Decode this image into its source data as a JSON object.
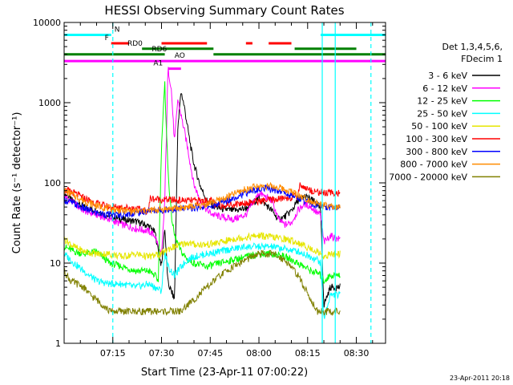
{
  "chart_data": {
    "type": "line",
    "title": "HESSI Observing Summary Count Rates",
    "xlabel": "Start Time (23-Apr-11 07:00:22)",
    "ylabel": "Count Rate (s⁻¹ detector⁻¹)",
    "y_scale": "log",
    "ylim": [
      1,
      10000
    ],
    "y_ticks": [
      1,
      10,
      100,
      1000,
      10000
    ],
    "y_tick_labels": [
      "1",
      "10",
      "100",
      "1000",
      "10000"
    ],
    "x_unit": "minutes after 07:00",
    "xlim": [
      0,
      99
    ],
    "x_ticks": [
      15,
      30,
      45,
      60,
      75,
      90
    ],
    "x_tick_labels": [
      "07:15",
      "07:30",
      "07:45",
      "08:00",
      "08:15",
      "08:30"
    ],
    "legend_title": [
      "Det 1,3,4,5,6,",
      "FDecim 1"
    ],
    "legend_position": "right",
    "footer": "23-Apr-2011 20:18",
    "series": [
      {
        "name": "3 - 6 keV",
        "color": "#000000",
        "x": [
          0,
          2,
          6,
          10,
          14,
          18,
          22,
          26,
          28,
          30,
          31,
          32,
          33,
          34,
          35,
          36,
          37,
          38,
          39,
          40,
          42,
          44,
          46,
          48,
          52,
          56,
          60,
          64,
          66,
          68,
          70,
          72,
          74,
          76,
          78,
          79,
          80,
          82,
          84,
          85
        ],
        "y": [
          75,
          62,
          50,
          45,
          38,
          35,
          33,
          29,
          24,
          9,
          28,
          5.5,
          4.5,
          3.5,
          450,
          1400,
          900,
          500,
          280,
          170,
          90,
          60,
          52,
          48,
          45,
          48,
          65,
          45,
          35,
          38,
          45,
          60,
          68,
          62,
          55,
          45,
          3,
          5,
          5,
          5
        ]
      },
      {
        "name": "6 - 12 keV",
        "color": "#ff00ff",
        "x": [
          0,
          2,
          6,
          10,
          14,
          18,
          22,
          26,
          28,
          30,
          31,
          32,
          33,
          34,
          35,
          36,
          37,
          38,
          39,
          40,
          42,
          44,
          46,
          48,
          52,
          56,
          60,
          64,
          66,
          68,
          70,
          72,
          74,
          76,
          78,
          79,
          80,
          82,
          84,
          85
        ],
        "y": [
          68,
          60,
          45,
          40,
          35,
          30,
          27,
          25,
          22,
          12,
          60,
          2700,
          1500,
          320,
          1100,
          700,
          450,
          280,
          160,
          95,
          60,
          45,
          40,
          38,
          35,
          40,
          75,
          60,
          35,
          30,
          32,
          45,
          55,
          50,
          42,
          40,
          18,
          22,
          20,
          20
        ]
      },
      {
        "name": "12 - 25 keV",
        "color": "#00ff00",
        "x": [
          0,
          3,
          6,
          10,
          14,
          18,
          22,
          26,
          28,
          29,
          30,
          31,
          32,
          33,
          34,
          36,
          38,
          40,
          44,
          48,
          52,
          56,
          60,
          64,
          68,
          72,
          76,
          78,
          79,
          80,
          82,
          84,
          85
        ],
        "y": [
          16,
          14,
          13,
          14,
          10,
          9,
          8,
          8,
          7,
          6,
          300,
          1700,
          140,
          40,
          22,
          14,
          11,
          10,
          9,
          10,
          11,
          12,
          13,
          13,
          12,
          10,
          8,
          7.5,
          7,
          6,
          7,
          7,
          7
        ]
      },
      {
        "name": "25 - 50 keV",
        "color": "#00ffff",
        "x": [
          0,
          3,
          6,
          10,
          14,
          18,
          22,
          26,
          28,
          30,
          31,
          32,
          34,
          36,
          38,
          40,
          44,
          48,
          52,
          56,
          60,
          64,
          68,
          72,
          76,
          78,
          79,
          80,
          82,
          84,
          85
        ],
        "y": [
          13,
          10,
          8,
          6,
          5.5,
          5.5,
          5,
          5.5,
          5,
          4.5,
          14,
          9,
          7,
          9,
          11,
          12,
          13,
          14,
          15,
          16,
          16,
          16,
          15,
          14,
          12,
          11,
          10,
          2,
          4,
          4,
          4
        ]
      },
      {
        "name": "50 - 100 keV",
        "color": "#e6e600",
        "x": [
          0,
          3,
          6,
          10,
          14,
          18,
          22,
          26,
          30,
          32,
          34,
          36,
          38,
          40,
          44,
          48,
          52,
          56,
          60,
          64,
          68,
          72,
          76,
          78,
          80,
          82,
          84,
          85
        ],
        "y": [
          20,
          16,
          14,
          13,
          13,
          12,
          13,
          12,
          13,
          15,
          16,
          17,
          18,
          17,
          17,
          18,
          20,
          21,
          22,
          21,
          20,
          18,
          15,
          14,
          12,
          13,
          13,
          13
        ]
      },
      {
        "name": "100 - 300 keV",
        "color": "#ff0000",
        "x": [
          0,
          3,
          6,
          10,
          14,
          18,
          22,
          24,
          26,
          26.5,
          30,
          34,
          38,
          42,
          46,
          46.5,
          50,
          54,
          58,
          62,
          66,
          70,
          72,
          72.5,
          76,
          80,
          84,
          85
        ],
        "y": [
          82,
          75,
          65,
          55,
          50,
          50,
          48,
          45,
          45,
          64,
          62,
          61,
          60,
          60,
          60,
          52,
          53,
          55,
          58,
          60,
          63,
          66,
          68,
          95,
          80,
          75,
          75,
          75
        ]
      },
      {
        "name": "300 - 800 keV",
        "color": "#0000ff",
        "x": [
          0,
          3,
          6,
          10,
          14,
          18,
          22,
          26,
          30,
          34,
          38,
          42,
          46,
          50,
          54,
          58,
          62,
          66,
          70,
          74,
          78,
          82,
          85
        ],
        "y": [
          62,
          55,
          48,
          42,
          40,
          40,
          42,
          45,
          46,
          47,
          48,
          50,
          52,
          60,
          70,
          80,
          85,
          80,
          70,
          60,
          52,
          50,
          50
        ]
      },
      {
        "name": "800 - 7000 keV",
        "color": "#ff8c00",
        "x": [
          0,
          3,
          6,
          10,
          14,
          18,
          22,
          26,
          30,
          34,
          38,
          42,
          46,
          50,
          54,
          58,
          62,
          66,
          70,
          74,
          78,
          82,
          85
        ],
        "y": [
          80,
          70,
          60,
          52,
          48,
          45,
          44,
          45,
          47,
          48,
          50,
          52,
          58,
          66,
          78,
          88,
          92,
          88,
          78,
          65,
          55,
          50,
          48
        ]
      },
      {
        "name": "7000 - 20000 keV",
        "color": "#808000",
        "x": [
          0,
          2,
          4,
          6,
          8,
          10,
          12,
          14,
          16,
          18,
          20,
          22,
          24,
          26,
          28,
          30,
          32,
          34,
          36,
          38,
          40,
          44,
          48,
          52,
          56,
          58,
          60,
          62,
          64,
          66,
          68,
          70,
          72,
          74,
          76,
          78,
          80,
          82,
          84,
          85
        ],
        "y": [
          8,
          6,
          5.5,
          5,
          4,
          3.5,
          3,
          2.5,
          2.5,
          2.5,
          2.5,
          2.5,
          2.5,
          2.5,
          2.5,
          2.5,
          2.5,
          2.5,
          2.5,
          3,
          3.5,
          5,
          7,
          9,
          11,
          12,
          13,
          13,
          13,
          12,
          11,
          9,
          7,
          5,
          3.5,
          2.5,
          2.5,
          2.5,
          2.5,
          2.5
        ]
      }
    ],
    "flags": [
      {
        "name": "N",
        "color": "#00ffff",
        "level": 7000,
        "label_x": 15.5,
        "segments": [
          [
            0,
            14.5
          ],
          [
            79,
            99
          ]
        ]
      },
      {
        "name": "F",
        "color": "#ff0000",
        "level": 5500,
        "label_x": 12.5,
        "segments": [
          [
            14.5,
            20
          ],
          [
            30,
            44
          ],
          [
            56,
            58
          ],
          [
            63,
            70
          ]
        ]
      },
      {
        "name": "RD0",
        "color": "#008000",
        "level": 4700,
        "label_x": 19.5,
        "segments": [
          [
            24,
            46
          ],
          [
            71,
            90
          ]
        ]
      },
      {
        "name": "RD6",
        "color": "#008000",
        "level": 4000,
        "label_x": 27,
        "segments": [
          [
            0,
            31
          ],
          [
            46,
            99
          ]
        ]
      },
      {
        "name": "AO",
        "color": "#ff00ff",
        "level": 3300,
        "label_x": 34,
        "segments": [
          [
            0,
            99
          ]
        ]
      },
      {
        "name": "A1",
        "color": "#ff00ff",
        "level": 2650,
        "label_x": 27.5,
        "segments": [
          [
            32,
            36
          ]
        ]
      }
    ],
    "vlines": [
      {
        "x": 15.0,
        "color": "#00ffff",
        "style": "dashed"
      },
      {
        "x": 79.5,
        "color": "#00ffff",
        "style": "solid"
      },
      {
        "x": 83.5,
        "color": "#00ffff",
        "style": "solid"
      },
      {
        "x": 94.5,
        "color": "#00ffff",
        "style": "dashed"
      }
    ]
  }
}
